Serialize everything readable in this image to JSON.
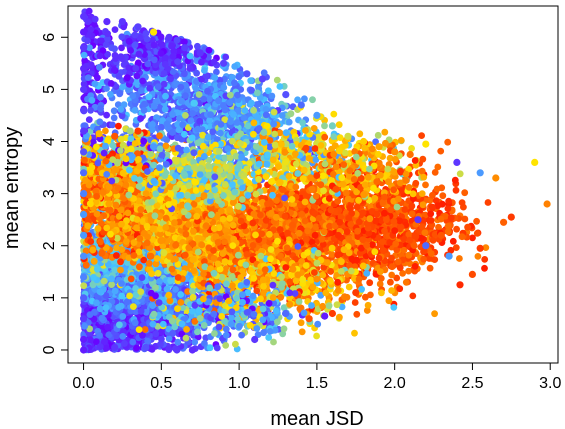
{
  "chart_data": {
    "type": "scatter",
    "title": "",
    "xlabel": "mean JSD",
    "ylabel": "mean entropy",
    "xlim": [
      -0.1,
      3.05
    ],
    "ylim": [
      -0.25,
      6.6
    ],
    "x_ticks": [
      {
        "value": 0.0,
        "label": "0.0"
      },
      {
        "value": 0.5,
        "label": "0.5"
      },
      {
        "value": 1.0,
        "label": "1.0"
      },
      {
        "value": 1.5,
        "label": "1.5"
      },
      {
        "value": 2.0,
        "label": "2.0"
      },
      {
        "value": 2.5,
        "label": "2.5"
      },
      {
        "value": 3.0,
        "label": "3.0"
      }
    ],
    "y_ticks": [
      {
        "value": 0,
        "label": "0"
      },
      {
        "value": 1,
        "label": "1"
      },
      {
        "value": 2,
        "label": "2"
      },
      {
        "value": 3,
        "label": "3"
      },
      {
        "value": 4,
        "label": "4"
      },
      {
        "value": 5,
        "label": "5"
      },
      {
        "value": 6,
        "label": "6"
      }
    ],
    "grid": false,
    "legend": "none",
    "color_scale": [
      "#6a00ff",
      "#4f6bff",
      "#47c8ff",
      "#ffe400",
      "#ff8c00",
      "#ff1e00"
    ],
    "points": [
      {
        "x": 0.0,
        "y": 6.4,
        "c": 0.1
      },
      {
        "x": 0.0,
        "y": 6.1,
        "c": 0.05
      },
      {
        "x": 0.0,
        "y": 5.8,
        "c": 0.1
      },
      {
        "x": 0.0,
        "y": 5.4,
        "c": 0.08
      },
      {
        "x": 0.0,
        "y": 5.0,
        "c": 0.1
      },
      {
        "x": 0.0,
        "y": 4.6,
        "c": 0.12
      },
      {
        "x": 0.0,
        "y": 4.2,
        "c": 0.1
      },
      {
        "x": 0.0,
        "y": 3.8,
        "c": 0.15
      },
      {
        "x": 0.0,
        "y": 3.4,
        "c": 0.2
      },
      {
        "x": 0.0,
        "y": 3.0,
        "c": 0.25
      },
      {
        "x": 0.0,
        "y": 2.6,
        "c": 0.3
      },
      {
        "x": 0.0,
        "y": 2.2,
        "c": 0.3
      },
      {
        "x": 0.0,
        "y": 1.8,
        "c": 0.28
      },
      {
        "x": 0.0,
        "y": 1.4,
        "c": 0.25
      },
      {
        "x": 0.0,
        "y": 1.0,
        "c": 0.18
      },
      {
        "x": 0.0,
        "y": 0.6,
        "c": 0.1
      },
      {
        "x": 0.0,
        "y": 0.2,
        "c": 0.05
      },
      {
        "x": 0.0,
        "y": 0.0,
        "c": 0.05
      },
      {
        "x": 0.15,
        "y": 6.3,
        "c": 0.08
      },
      {
        "x": 0.25,
        "y": 6.3,
        "c": 0.1
      },
      {
        "x": 0.35,
        "y": 6.2,
        "c": 0.12
      },
      {
        "x": 0.45,
        "y": 6.1,
        "c": 0.6
      },
      {
        "x": 0.55,
        "y": 6.0,
        "c": 0.1
      },
      {
        "x": 0.65,
        "y": 5.8,
        "c": 0.12
      },
      {
        "x": 0.75,
        "y": 5.7,
        "c": 0.1
      },
      {
        "x": 0.9,
        "y": 5.5,
        "c": 0.12
      },
      {
        "x": 1.05,
        "y": 5.3,
        "c": 0.15
      },
      {
        "x": 1.15,
        "y": 5.2,
        "c": 0.12
      },
      {
        "x": 1.3,
        "y": 4.9,
        "c": 0.15
      },
      {
        "x": 1.4,
        "y": 4.7,
        "c": 0.2
      },
      {
        "x": 1.5,
        "y": 4.5,
        "c": 0.3
      },
      {
        "x": 1.6,
        "y": 4.3,
        "c": 0.45
      },
      {
        "x": 1.7,
        "y": 4.1,
        "c": 0.55
      },
      {
        "x": 1.8,
        "y": 4.0,
        "c": 0.65
      },
      {
        "x": 1.9,
        "y": 3.9,
        "c": 0.75
      },
      {
        "x": 2.0,
        "y": 3.8,
        "c": 0.8
      },
      {
        "x": 2.1,
        "y": 3.75,
        "c": 0.85
      },
      {
        "x": 2.2,
        "y": 3.95,
        "c": 0.6
      },
      {
        "x": 2.4,
        "y": 3.6,
        "c": 0.1
      },
      {
        "x": 2.55,
        "y": 3.4,
        "c": 0.3
      },
      {
        "x": 2.65,
        "y": 3.3,
        "c": 0.8
      },
      {
        "x": 2.9,
        "y": 3.6,
        "c": 0.6
      },
      {
        "x": 2.98,
        "y": 2.8,
        "c": 0.82
      },
      {
        "x": 2.75,
        "y": 2.55,
        "c": 0.95
      },
      {
        "x": 2.7,
        "y": 2.45,
        "c": 0.88
      },
      {
        "x": 2.55,
        "y": 1.95,
        "c": 0.95
      },
      {
        "x": 2.5,
        "y": 1.45,
        "c": 0.92
      },
      {
        "x": 2.42,
        "y": 1.25,
        "c": 0.98
      },
      {
        "x": 2.2,
        "y": 2.0,
        "c": 0.2
      },
      {
        "x": 2.15,
        "y": 2.5,
        "c": 0.1
      },
      {
        "x": 2.3,
        "y": 2.2,
        "c": 0.9
      },
      {
        "x": 2.35,
        "y": 1.8,
        "c": 0.3
      },
      {
        "x": 1.75,
        "y": 1.1,
        "c": 0.95
      },
      {
        "x": 1.6,
        "y": 0.7,
        "c": 0.95
      },
      {
        "x": 1.55,
        "y": 0.65,
        "c": 0.05
      },
      {
        "x": 1.45,
        "y": 0.6,
        "c": 0.9
      },
      {
        "x": 1.3,
        "y": 0.7,
        "c": 0.2
      },
      {
        "x": 1.1,
        "y": 0.2,
        "c": 0.1
      },
      {
        "x": 0.7,
        "y": 0.0,
        "c": 0.08
      },
      {
        "x": 0.6,
        "y": 0.0,
        "c": 0.1
      },
      {
        "x": 0.4,
        "y": 0.05,
        "c": 0.15
      },
      {
        "x": 0.2,
        "y": 0.05,
        "c": 0.1
      },
      {
        "x": 0.95,
        "y": 0.5,
        "c": 0.3
      },
      {
        "x": 0.3,
        "y": 4.2,
        "c": 0.5
      },
      {
        "x": 0.2,
        "y": 4.1,
        "c": 0.9
      },
      {
        "x": 0.1,
        "y": 4.15,
        "c": 0.7
      },
      {
        "x": 0.35,
        "y": 4.2,
        "c": 0.95
      },
      {
        "x": 0.45,
        "y": 3.9,
        "c": 0.3
      }
    ],
    "regions": [
      {
        "x": 0.04,
        "y": 5.0,
        "sx": 0.06,
        "sy": 1.2,
        "n": 160,
        "c": 0.06,
        "cs": 0.05
      },
      {
        "x": 0.04,
        "y": 2.6,
        "sx": 0.08,
        "sy": 0.9,
        "n": 200,
        "c": 0.35,
        "cs": 0.12
      },
      {
        "x": 0.25,
        "y": 0.55,
        "sx": 0.25,
        "sy": 0.35,
        "n": 800,
        "c": 0.08,
        "cs": 0.06
      },
      {
        "x": 0.5,
        "y": 1.1,
        "sx": 0.3,
        "sy": 0.35,
        "n": 700,
        "c": 0.22,
        "cs": 0.08
      },
      {
        "x": 0.35,
        "y": 1.8,
        "sx": 0.3,
        "sy": 0.35,
        "n": 700,
        "c": 0.38,
        "cs": 0.08
      },
      {
        "x": 0.35,
        "y": 2.7,
        "sx": 0.22,
        "sy": 0.45,
        "n": 800,
        "c": 0.85,
        "cs": 0.08
      },
      {
        "x": 0.2,
        "y": 3.3,
        "sx": 0.15,
        "sy": 0.35,
        "n": 400,
        "c": 0.78,
        "cs": 0.1
      },
      {
        "x": 0.6,
        "y": 2.7,
        "sx": 0.12,
        "sy": 0.35,
        "n": 300,
        "c": 0.62,
        "cs": 0.06
      },
      {
        "x": 0.85,
        "y": 2.3,
        "sx": 0.28,
        "sy": 0.45,
        "n": 800,
        "c": 0.72,
        "cs": 0.08
      },
      {
        "x": 1.25,
        "y": 2.25,
        "sx": 0.3,
        "sy": 0.5,
        "n": 1000,
        "c": 0.82,
        "cs": 0.07
      },
      {
        "x": 1.7,
        "y": 2.3,
        "sx": 0.28,
        "sy": 0.55,
        "n": 800,
        "c": 0.9,
        "cs": 0.06
      },
      {
        "x": 2.1,
        "y": 2.5,
        "sx": 0.2,
        "sy": 0.45,
        "n": 300,
        "c": 0.93,
        "cs": 0.05
      },
      {
        "x": 1.3,
        "y": 1.3,
        "sx": 0.3,
        "sy": 0.35,
        "n": 400,
        "c": 0.7,
        "cs": 0.15
      },
      {
        "x": 0.9,
        "y": 0.7,
        "sx": 0.25,
        "sy": 0.3,
        "n": 300,
        "c": 0.35,
        "cs": 0.2
      },
      {
        "x": 0.65,
        "y": 4.7,
        "sx": 0.25,
        "sy": 0.6,
        "n": 700,
        "c": 0.25,
        "cs": 0.08
      },
      {
        "x": 0.45,
        "y": 5.7,
        "sx": 0.18,
        "sy": 0.3,
        "n": 300,
        "c": 0.1,
        "cs": 0.06
      },
      {
        "x": 1.0,
        "y": 4.3,
        "sx": 0.2,
        "sy": 0.45,
        "n": 400,
        "c": 0.32,
        "cs": 0.1
      },
      {
        "x": 1.35,
        "y": 3.7,
        "sx": 0.25,
        "sy": 0.35,
        "n": 350,
        "c": 0.55,
        "cs": 0.15
      },
      {
        "x": 1.8,
        "y": 3.4,
        "sx": 0.2,
        "sy": 0.3,
        "n": 250,
        "c": 0.75,
        "cs": 0.15
      },
      {
        "x": 0.75,
        "y": 3.3,
        "sx": 0.18,
        "sy": 0.3,
        "n": 300,
        "c": 0.5,
        "cs": 0.1
      },
      {
        "x": 0.3,
        "y": 3.8,
        "sx": 0.15,
        "sy": 0.2,
        "n": 150,
        "c": 0.5,
        "cs": 0.3
      }
    ]
  }
}
